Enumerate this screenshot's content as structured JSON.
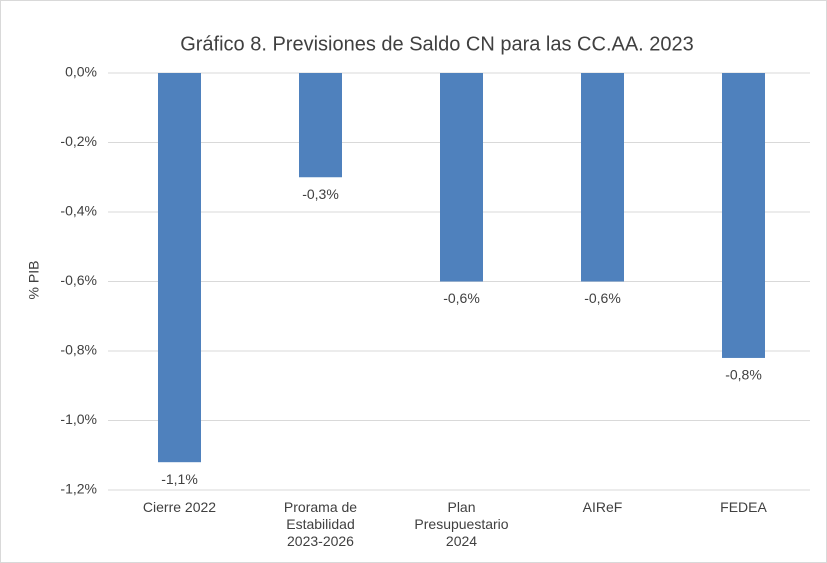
{
  "chart_data": {
    "type": "bar",
    "title": "Gráfico 8. Previsiones de Saldo CN para las CC.AA. 2023",
    "y_label": "% PIB",
    "categories": [
      [
        "Cierre 2022"
      ],
      [
        "Prorama de",
        "Estabilidad",
        "2023-2026"
      ],
      [
        "Plan",
        "Presupuestario",
        "2024"
      ],
      [
        "AIReF"
      ],
      [
        "FEDEA"
      ]
    ],
    "values": [
      -1.12,
      -0.3,
      -0.6,
      -0.6,
      -0.82
    ],
    "value_labels": [
      "-1,1%",
      "-0,3%",
      "-0,6%",
      "-0,6%",
      "-0,8%"
    ],
    "color": "#4f81bd",
    "ylim": [
      -1.2,
      0
    ],
    "yticks": [
      {
        "value": 0,
        "label": "0,0%"
      },
      {
        "value": -0.2,
        "label": "-0,2%"
      },
      {
        "value": -0.4,
        "label": "-0,4%"
      },
      {
        "value": -0.6,
        "label": "-0,6%"
      },
      {
        "value": -0.8,
        "label": "-0,8%"
      },
      {
        "value": -1.0,
        "label": "-1,0%"
      },
      {
        "value": -1.2,
        "label": "-1,2%"
      }
    ],
    "grid": true
  }
}
